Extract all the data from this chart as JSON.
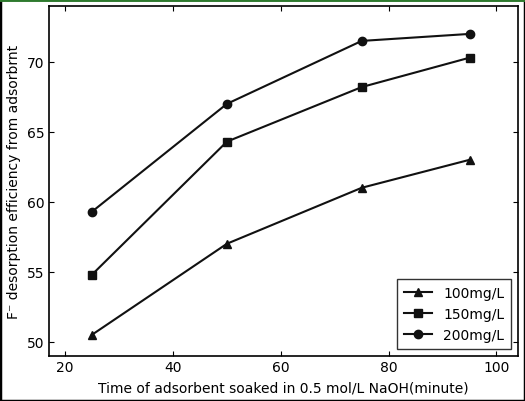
{
  "x": [
    25,
    50,
    75,
    95
  ],
  "series": [
    {
      "label": "100mg/L",
      "values": [
        50.5,
        57.0,
        61.0,
        63.0
      ],
      "marker": "^"
    },
    {
      "label": "150mg/L",
      "values": [
        54.8,
        64.3,
        68.2,
        70.3
      ],
      "marker": "s"
    },
    {
      "label": "200mg/L",
      "values": [
        59.3,
        67.0,
        71.5,
        72.0
      ],
      "marker": "o"
    }
  ],
  "xlabel": "Time of adsorbent soaked in 0.5 mol/L NaOH(minute)",
  "ylabel": "F⁻ desorption efficiency from adsorbrnt",
  "xlim": [
    17,
    104
  ],
  "ylim": [
    49,
    74
  ],
  "xticks": [
    20,
    40,
    60,
    80,
    100
  ],
  "yticks": [
    50,
    55,
    60,
    65,
    70
  ],
  "line_color": "#111111",
  "border_color": "#000000",
  "top_border_color": "#2d7a2d",
  "background_color": "#ffffff",
  "legend_loc": "lower right",
  "font_size": 10,
  "xlabel_font_size": 10,
  "ylabel_font_size": 10,
  "legend_font_size": 10
}
